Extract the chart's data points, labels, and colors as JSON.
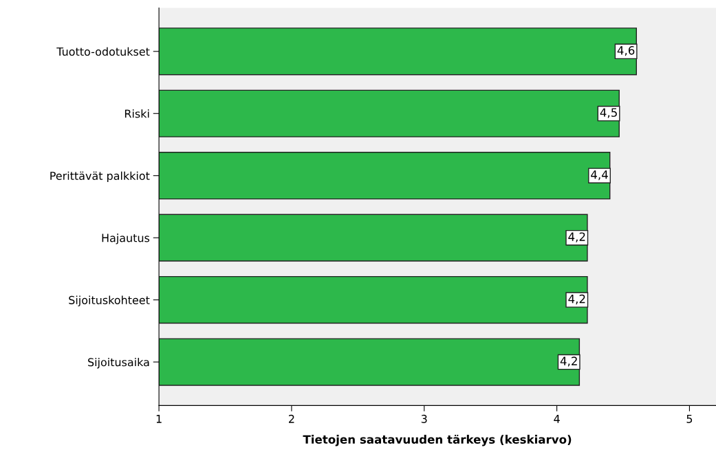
{
  "chart_data": {
    "type": "bar",
    "orientation": "horizontal",
    "xlabel": "Tietojen saatavuuden tärkeys (keskiarvo)",
    "categories": [
      "Tuotto-odotukset",
      "Riski",
      "Perittävät palkkiot",
      "Hajautus",
      "Sijoituskohteet",
      "Sijoitusaika"
    ],
    "values": [
      4.6,
      4.47,
      4.4,
      4.23,
      4.23,
      4.17
    ],
    "value_labels": [
      "4,6",
      "4,5",
      "4,4",
      "4,2",
      "4,2",
      "4,2"
    ],
    "color": "#2db84b",
    "xlim": [
      1,
      5.2
    ],
    "xticks": [
      1,
      2,
      3,
      4,
      5
    ],
    "grid": false,
    "legend": false
  }
}
